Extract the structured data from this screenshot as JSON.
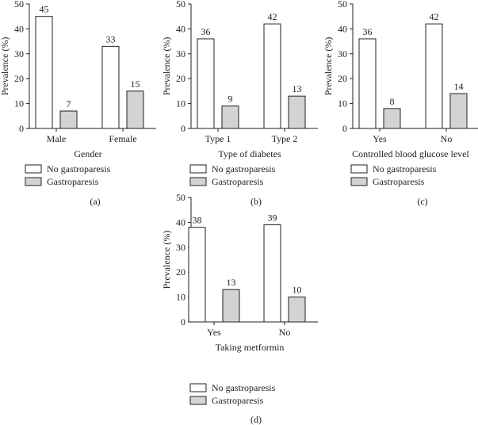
{
  "chart_data": [
    {
      "type": "bar",
      "panel_label": "(a)",
      "categories": [
        "Male",
        "Female"
      ],
      "xlabel": "Gender",
      "ylabel": "Prevalence (%)",
      "ylim": [
        0,
        50
      ],
      "yticks": [
        0,
        10,
        20,
        30,
        40,
        50
      ],
      "series": [
        {
          "name": "No gastroparesis",
          "values": [
            45,
            33
          ]
        },
        {
          "name": "Gastroparesis",
          "values": [
            7,
            15
          ]
        }
      ]
    },
    {
      "type": "bar",
      "panel_label": "(b)",
      "categories": [
        "Type 1",
        "Type 2"
      ],
      "xlabel": "Type of diabetes",
      "ylabel": "Prevalence (%)",
      "ylim": [
        0,
        50
      ],
      "yticks": [
        0,
        10,
        20,
        30,
        40,
        50
      ],
      "series": [
        {
          "name": "No gastroparesis",
          "values": [
            36,
            42
          ]
        },
        {
          "name": "Gastroparesis",
          "values": [
            9,
            13
          ]
        }
      ]
    },
    {
      "type": "bar",
      "panel_label": "(c)",
      "categories": [
        "Yes",
        "No"
      ],
      "xlabel": "Controlled blood glucose level",
      "ylabel": "Prevalence (%)",
      "ylim": [
        0,
        50
      ],
      "yticks": [
        0,
        10,
        20,
        30,
        40,
        50
      ],
      "series": [
        {
          "name": "No gastroparesis",
          "values": [
            36,
            42
          ]
        },
        {
          "name": "Gastroparesis",
          "values": [
            8,
            14
          ]
        }
      ]
    },
    {
      "type": "bar",
      "panel_label": "(d)",
      "categories": [
        "Yes",
        "No"
      ],
      "xlabel": "Taking metformin",
      "ylabel": "Prevalence (%)",
      "ylim": [
        0,
        50
      ],
      "yticks": [
        0,
        10,
        20,
        30,
        40,
        50
      ],
      "series": [
        {
          "name": "No gastroparesis",
          "values": [
            38,
            39
          ]
        },
        {
          "name": "Gastroparesis",
          "values": [
            13,
            10
          ]
        }
      ]
    }
  ],
  "colors": {
    "no_gastroparesis": "#ffffff",
    "gastroparesis": "#d3d3d3",
    "stroke": "#222222"
  }
}
